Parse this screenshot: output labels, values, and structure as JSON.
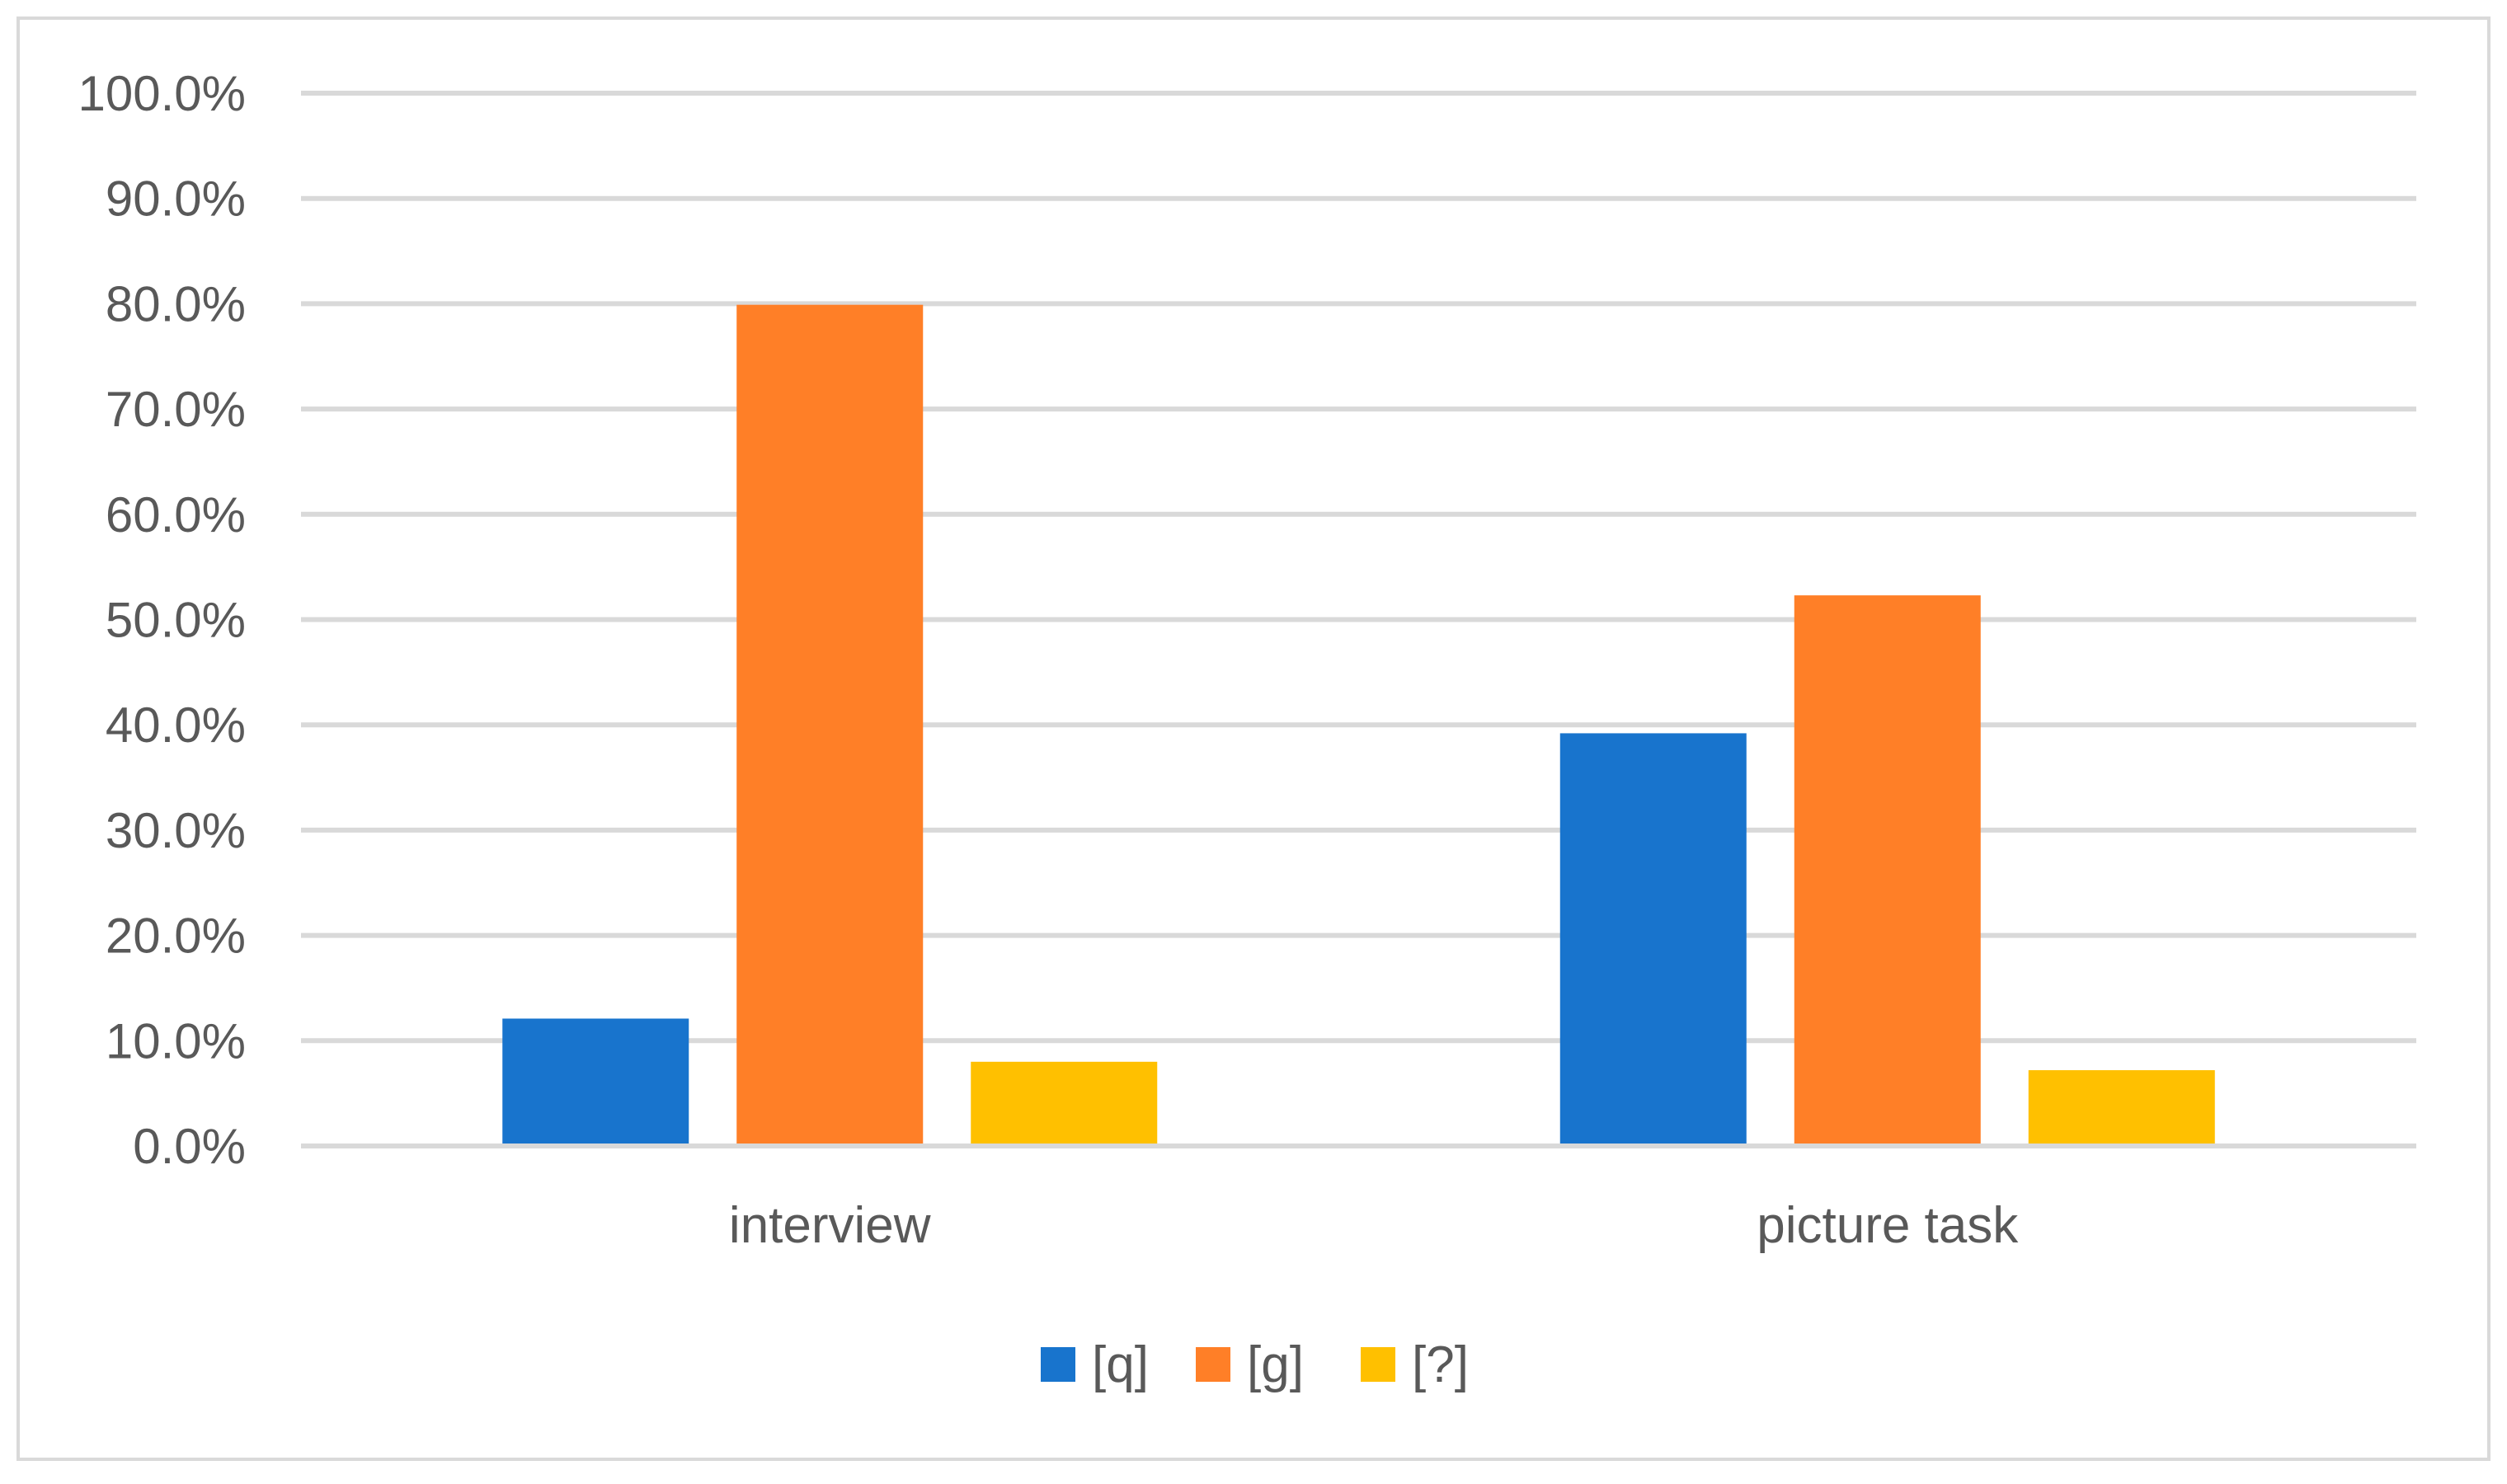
{
  "chart_data": {
    "type": "bar",
    "title": "",
    "xlabel": "",
    "ylabel": "",
    "categories": [
      "interview",
      "picture task"
    ],
    "series": [
      {
        "name": "[q]",
        "color": "#1874CD",
        "values": [
          12.1,
          39.2
        ]
      },
      {
        "name": "[g]",
        "color": "#FF7F27",
        "values": [
          79.9,
          52.3
        ]
      },
      {
        "name": "[?]",
        "color": "#FFC000",
        "values": [
          8.0,
          7.2
        ]
      }
    ],
    "ylim": [
      0,
      100
    ],
    "yticks": [
      0,
      10,
      20,
      30,
      40,
      50,
      60,
      70,
      80,
      90,
      100
    ],
    "ytick_labels": [
      "0.0%",
      "10.0%",
      "20.0%",
      "30.0%",
      "40.0%",
      "50.0%",
      "60.0%",
      "70.0%",
      "80.0%",
      "90.0%",
      "100.0%"
    ],
    "grid": true,
    "grid_color": "#d9d9d9",
    "legend_position": "bottom"
  }
}
